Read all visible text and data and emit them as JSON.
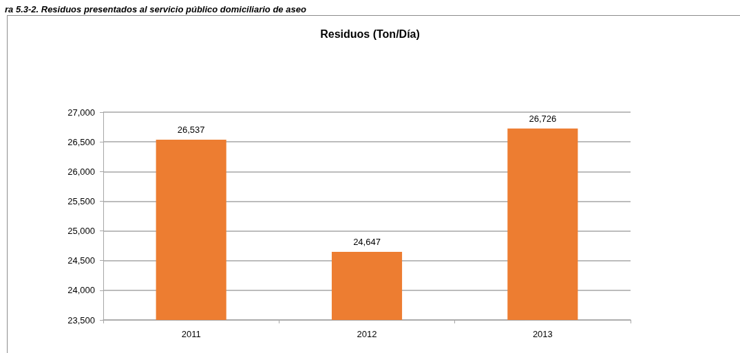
{
  "chart_data": {
    "type": "bar",
    "title": "Residuos (Ton/Día)",
    "annotations": [
      "ra 5.3-2. Residuos presentados al servicio público domiciliario de aseo"
    ],
    "categories": [
      "2011",
      "2012",
      "2013"
    ],
    "values": [
      26537,
      24647,
      26726
    ],
    "value_labels": [
      "26,537",
      "24,647",
      "26,726"
    ],
    "color": "#ed7d31",
    "ylim": [
      23500,
      27000
    ],
    "yticks": [
      {
        "value": 23500,
        "label": "23,500"
      },
      {
        "value": 24000,
        "label": "24,000"
      },
      {
        "value": 24500,
        "label": "24,500"
      },
      {
        "value": 25000,
        "label": "25,000"
      },
      {
        "value": 25500,
        "label": "25,500"
      },
      {
        "value": 26000,
        "label": "26,000"
      },
      {
        "value": 26500,
        "label": "26,500"
      },
      {
        "value": 27000,
        "label": "27,000"
      }
    ],
    "grid": "y"
  }
}
